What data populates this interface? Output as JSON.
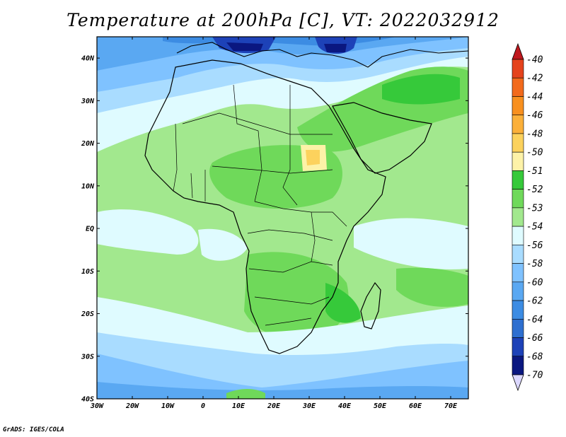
{
  "title": "Temperature at 200hPa [C], VT: 2022032912",
  "credit": "GrADS: IGES/COLA",
  "map": {
    "lat_labels": [
      "40N",
      "30N",
      "20N",
      "10N",
      "EQ",
      "10S",
      "20S",
      "30S",
      "40S"
    ],
    "lon_labels": [
      "30W",
      "20W",
      "10W",
      "0",
      "10E",
      "20E",
      "30E",
      "40E",
      "50E",
      "60E",
      "70E"
    ]
  },
  "colorbar": {
    "labels": [
      "-40",
      "-42",
      "-44",
      "-46",
      "-48",
      "-50",
      "-51",
      "-52",
      "-53",
      "-54",
      "-56",
      "-58",
      "-60",
      "-62",
      "-64",
      "-66",
      "-68",
      "-70"
    ],
    "colors": [
      "#c0181e",
      "#e5431c",
      "#f26a1c",
      "#f8901f",
      "#fbb03a",
      "#fcd25d",
      "#fdf2a8",
      "#36c93a",
      "#6fd95a",
      "#a2e88e",
      "#dffbff",
      "#a9dcff",
      "#7fc2ff",
      "#5aa8f2",
      "#3c8ce3",
      "#2e6fd0",
      "#1d42b8",
      "#0a1780"
    ]
  }
}
